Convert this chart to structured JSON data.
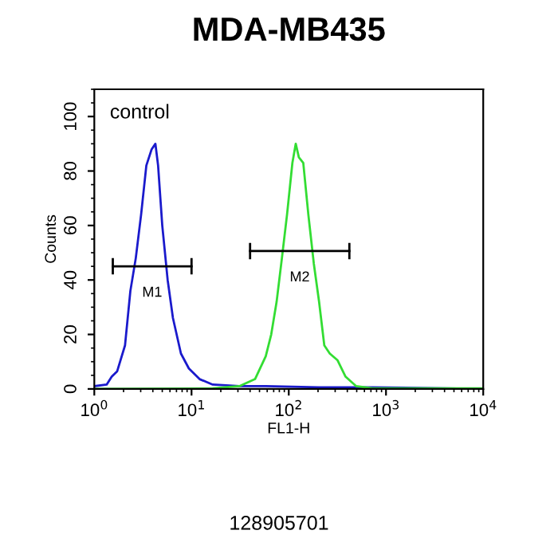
{
  "chart_data": {
    "type": "line",
    "title": "MDA-MB435",
    "xlabel": "FL1-H",
    "ylabel": "Counts",
    "log": "x",
    "xlim": [
      1,
      10000
    ],
    "ylim": [
      0,
      110
    ],
    "xticks": [
      {
        "value": 1,
        "label": "10$^{0}$"
      },
      {
        "value": 10,
        "label": "10$^{1}$"
      },
      {
        "value": 100,
        "label": "10$^{2}$"
      },
      {
        "value": 1000,
        "label": "10$^{3}$"
      },
      {
        "value": 10000,
        "label": "10$^{4}$"
      }
    ],
    "yticks": [
      0,
      20,
      40,
      60,
      80,
      100
    ],
    "grid": false,
    "legend": false,
    "series": [
      {
        "color": "#1a1acc",
        "x": [
          1,
          1.34,
          1.51,
          1.72,
          2.07,
          2.35,
          2.67,
          3.03,
          3.43,
          3.89,
          4.25,
          4.53,
          5.0,
          5.68,
          6.44,
          7.78,
          9.39,
          12.1,
          16.5,
          31,
          58,
          204,
          720,
          10000
        ],
        "values": [
          1,
          1.6,
          4.5,
          6.5,
          16,
          36,
          48,
          64,
          82,
          88,
          90,
          82,
          60,
          40,
          26,
          13,
          7.5,
          3.6,
          1.6,
          1,
          1,
          0.6,
          0.6,
          0
        ]
      },
      {
        "color": "#33dd33",
        "x": [
          1,
          16.5,
          31,
          45,
          58,
          66,
          75,
          85,
          96,
          109,
          118,
          127,
          141,
          159,
          181,
          205,
          232,
          264,
          318,
          384,
          494,
          721,
          10000
        ],
        "values": [
          0,
          0.2,
          1,
          3.6,
          12,
          20,
          32,
          48,
          64,
          83,
          90,
          85,
          83,
          64,
          46,
          32,
          16,
          13,
          10.5,
          4.5,
          1,
          0.2,
          0.2
        ]
      },
      {
        "type": "line",
        "name": "M1",
        "color": "#000000",
        "x": [
          1.55,
          10
        ],
        "values": [
          45,
          45
        ],
        "errors": [
          3,
          3
        ]
      },
      {
        "type": "line",
        "name": "M2",
        "color": "#000000",
        "x": [
          40,
          420
        ],
        "values": [
          50.6,
          50.6
        ],
        "errors": [
          3,
          3
        ]
      }
    ],
    "annotations": [
      "control",
      "128905701"
    ]
  }
}
